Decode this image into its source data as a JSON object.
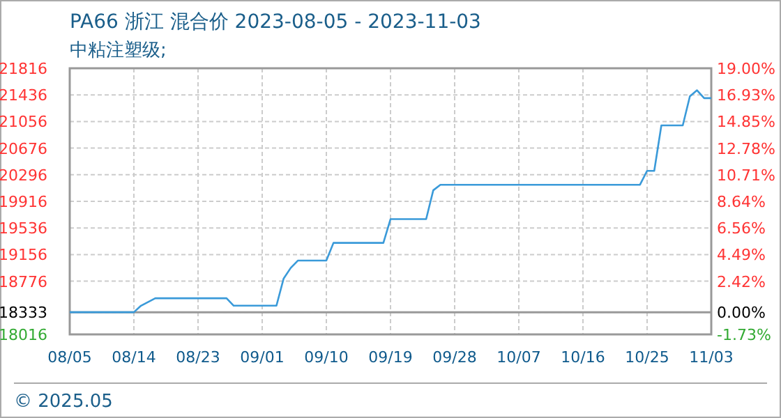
{
  "chart_data": {
    "type": "line",
    "title": "PA66 浙江 混合价 2023-08-05 - 2023-11-03",
    "subtitle": "中粘注塑级;",
    "annotations": [
      "© 2025.05"
    ],
    "x": [
      "--08-05",
      "--08-14",
      "--08-15",
      "--08-17",
      "--08-27",
      "--08-28",
      "--09-03",
      "--09-04",
      "--09-05",
      "--09-06",
      "--09-10",
      "--09-11",
      "--09-18",
      "--09-19",
      "--09-24",
      "--09-25",
      "--09-26",
      "--10-24",
      "--10-25",
      "--10-26",
      "--10-27",
      "--10-30",
      "--10-31",
      "--11-01",
      "--11-02",
      "--11-03"
    ],
    "series": [
      {
        "color": "#3a9ad9",
        "values": [
          18333,
          18333,
          18426,
          18532,
          18532,
          18426,
          18426,
          18811,
          18965,
          19070,
          19070,
          19323,
          19323,
          19662,
          19662,
          20074,
          20153,
          20153,
          20352,
          20352,
          21000,
          21000,
          21416,
          21502,
          21389,
          21389
        ]
      }
    ],
    "xlim": [
      "--08-05",
      "--11-03"
    ],
    "xticks": [
      {
        "value": "--08-05",
        "label": "08/05"
      },
      {
        "value": "--08-14",
        "label": "08/14"
      },
      {
        "value": "--08-23",
        "label": "08/23"
      },
      {
        "value": "--09-01",
        "label": "09/01"
      },
      {
        "value": "--09-10",
        "label": "09/10"
      },
      {
        "value": "--09-19",
        "label": "09/19"
      },
      {
        "value": "--09-28",
        "label": "09/28"
      },
      {
        "value": "--10-07",
        "label": "10/07"
      },
      {
        "value": "--10-16",
        "label": "10/16"
      },
      {
        "value": "--10-25",
        "label": "10/25"
      },
      {
        "value": "--11-03",
        "label": "11/03"
      }
    ],
    "ylim": [
      18016,
      21816
    ],
    "yticks": [
      18016,
      18333,
      18776,
      19156,
      19536,
      19916,
      20296,
      20676,
      21056,
      21436,
      21816
    ],
    "y2lim": [
      -1.73,
      19.0
    ],
    "y2ticks": [
      {
        "value": -1.73,
        "label": "-1.73%"
      },
      {
        "value": 0,
        "label": "0.00%"
      },
      {
        "value": 2.42,
        "label": "2.42%"
      },
      {
        "value": 4.49,
        "label": "4.49%"
      },
      {
        "value": 6.56,
        "label": "6.56%"
      },
      {
        "value": 8.64,
        "label": "8.64%"
      },
      {
        "value": 10.71,
        "label": "10.71%"
      },
      {
        "value": 12.78,
        "label": "12.78%"
      },
      {
        "value": 14.85,
        "label": "14.85%"
      },
      {
        "value": 16.93,
        "label": "16.93%"
      },
      {
        "value": 19.0,
        "label": "19.00%"
      }
    ],
    "ref_lines": [
      {
        "axis": "y",
        "value": 18333,
        "color": "#999999"
      }
    ],
    "grid": true,
    "line_style": "solid",
    "marker": "none"
  }
}
